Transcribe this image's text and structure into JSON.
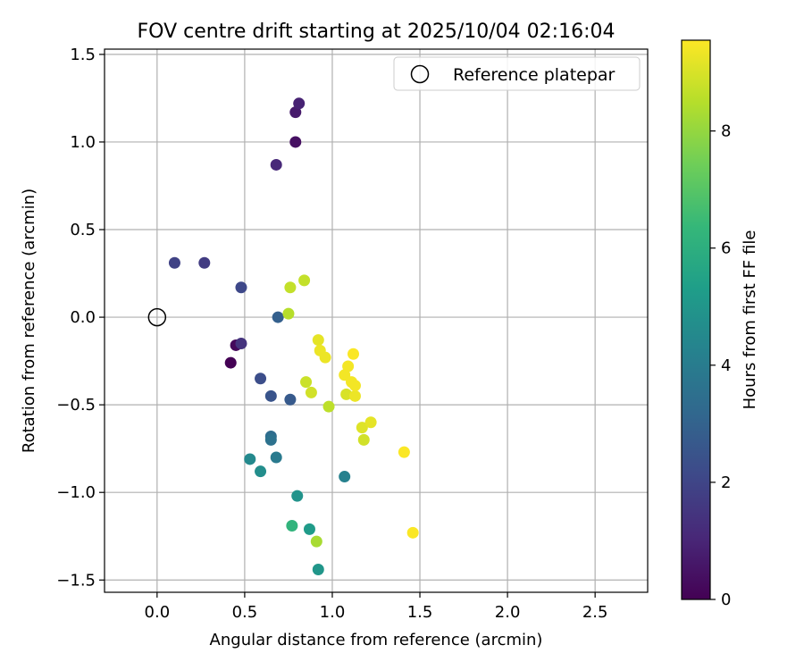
{
  "chart_data": {
    "type": "scatter",
    "title": "FOV centre drift starting at 2025/10/04 02:16:04",
    "xlabel": "Angular distance from reference (arcmin)",
    "ylabel": "Rotation from reference (arcmin)",
    "xlim": [
      -0.3,
      2.8
    ],
    "ylim": [
      -1.57,
      1.53
    ],
    "xticks": [
      0.0,
      0.5,
      1.0,
      1.5,
      2.0,
      2.5
    ],
    "xtick_labels": [
      "0.0",
      "0.5",
      "1.0",
      "1.5",
      "2.0",
      "2.5"
    ],
    "yticks": [
      -1.5,
      -1.0,
      -0.5,
      0.0,
      0.5,
      1.0,
      1.5
    ],
    "ytick_labels": [
      "−1.5",
      "−1.0",
      "−0.5",
      "0.0",
      "0.5",
      "1.0",
      "1.5"
    ],
    "grid": true,
    "legend": {
      "position": "top-right",
      "entries": [
        {
          "label": "Reference platepar",
          "marker": "open-circle"
        }
      ]
    },
    "reference_point": {
      "x": 0.0,
      "y": 0.0
    },
    "colorbar": {
      "label": "Hours from first FF file",
      "range": [
        0,
        9.55
      ],
      "ticks": [
        0,
        2,
        4,
        6,
        8
      ],
      "tick_labels": [
        "0",
        "2",
        "4",
        "6",
        "8"
      ],
      "colormap": [
        "#440154",
        "#482878",
        "#3e4989",
        "#31688e",
        "#26828e",
        "#1f9e89",
        "#35b779",
        "#6ece58",
        "#b5de2b",
        "#fde725"
      ]
    },
    "points": [
      {
        "x": 0.42,
        "y": -0.26,
        "hours": 0.0
      },
      {
        "x": 0.45,
        "y": -0.16,
        "hours": 0.2
      },
      {
        "x": 0.79,
        "y": 1.0,
        "hours": 0.4
      },
      {
        "x": 0.79,
        "y": 1.17,
        "hours": 0.7
      },
      {
        "x": 0.81,
        "y": 1.22,
        "hours": 0.9
      },
      {
        "x": 0.68,
        "y": 0.87,
        "hours": 1.1
      },
      {
        "x": 0.48,
        "y": -0.15,
        "hours": 1.4
      },
      {
        "x": 0.27,
        "y": 0.31,
        "hours": 1.7
      },
      {
        "x": 0.1,
        "y": 0.31,
        "hours": 1.9
      },
      {
        "x": 0.48,
        "y": 0.17,
        "hours": 2.1
      },
      {
        "x": 0.59,
        "y": -0.35,
        "hours": 2.3
      },
      {
        "x": 0.65,
        "y": -0.45,
        "hours": 2.5
      },
      {
        "x": 0.76,
        "y": -0.47,
        "hours": 2.7
      },
      {
        "x": 0.69,
        "y": 0.0,
        "hours": 2.9
      },
      {
        "x": 0.65,
        "y": -0.68,
        "hours": 3.4
      },
      {
        "x": 0.65,
        "y": -0.7,
        "hours": 3.6
      },
      {
        "x": 0.68,
        "y": -0.8,
        "hours": 3.9
      },
      {
        "x": 1.07,
        "y": -0.91,
        "hours": 4.2
      },
      {
        "x": 0.53,
        "y": -0.81,
        "hours": 4.5
      },
      {
        "x": 0.59,
        "y": -0.88,
        "hours": 4.7
      },
      {
        "x": 0.8,
        "y": -1.02,
        "hours": 4.9
      },
      {
        "x": 0.92,
        "y": -1.44,
        "hours": 5.0
      },
      {
        "x": 0.87,
        "y": -1.21,
        "hours": 5.2
      },
      {
        "x": 0.77,
        "y": -1.19,
        "hours": 6.2
      },
      {
        "x": 0.91,
        "y": -1.28,
        "hours": 8.3
      },
      {
        "x": 0.75,
        "y": 0.02,
        "hours": 8.5
      },
      {
        "x": 0.76,
        "y": 0.17,
        "hours": 8.7
      },
      {
        "x": 0.84,
        "y": 0.21,
        "hours": 8.7
      },
      {
        "x": 0.98,
        "y": -0.51,
        "hours": 8.6
      },
      {
        "x": 0.85,
        "y": -0.37,
        "hours": 8.8
      },
      {
        "x": 0.88,
        "y": -0.43,
        "hours": 8.9
      },
      {
        "x": 1.08,
        "y": -0.44,
        "hours": 9.0
      },
      {
        "x": 1.18,
        "y": -0.7,
        "hours": 8.9
      },
      {
        "x": 1.17,
        "y": -0.63,
        "hours": 9.1
      },
      {
        "x": 1.22,
        "y": -0.6,
        "hours": 9.2
      },
      {
        "x": 1.13,
        "y": -0.45,
        "hours": 9.3
      },
      {
        "x": 0.92,
        "y": -0.13,
        "hours": 9.2
      },
      {
        "x": 0.93,
        "y": -0.19,
        "hours": 9.3
      },
      {
        "x": 0.96,
        "y": -0.23,
        "hours": 9.3
      },
      {
        "x": 1.07,
        "y": -0.33,
        "hours": 9.4
      },
      {
        "x": 1.09,
        "y": -0.28,
        "hours": 9.4
      },
      {
        "x": 1.11,
        "y": -0.37,
        "hours": 9.4
      },
      {
        "x": 1.13,
        "y": -0.39,
        "hours": 9.4
      },
      {
        "x": 1.12,
        "y": -0.21,
        "hours": 9.5
      },
      {
        "x": 1.41,
        "y": -0.77,
        "hours": 9.5
      },
      {
        "x": 1.46,
        "y": -1.23,
        "hours": 9.5
      }
    ]
  }
}
